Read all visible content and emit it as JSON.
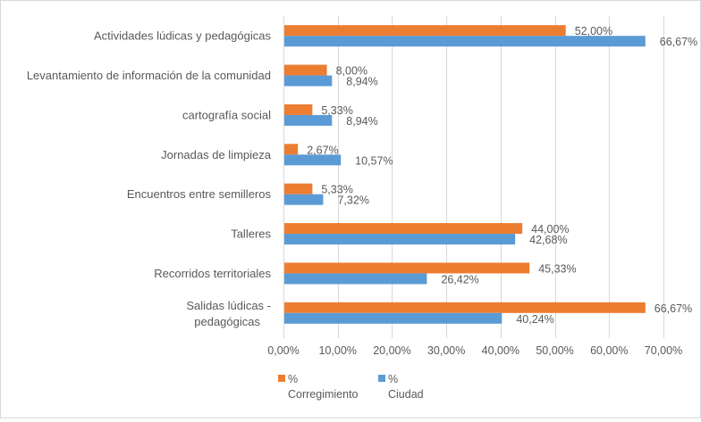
{
  "chart_data": {
    "type": "bar",
    "orientation": "horizontal",
    "title": "",
    "xlabel": "",
    "ylabel": "",
    "categories": [
      "Actividades lúdicas y pedagógicas",
      "Levantamiento de información de la comunidad",
      "cartografía social",
      "Jornadas de limpieza",
      "Encuentros entre semilleros",
      "Talleres",
      "Recorridos territoriales",
      "Salidas lúdicas  - pedagógicas"
    ],
    "category_lines": [
      [
        "Actividades lúdicas y pedagógicas"
      ],
      [
        "Levantamiento de información de la comunidad"
      ],
      [
        "cartografía social"
      ],
      [
        "Jornadas de limpieza"
      ],
      [
        "Encuentros entre semilleros"
      ],
      [
        "Talleres"
      ],
      [
        "Recorridos territoriales"
      ],
      [
        "Salidas lúdicas  -",
        "pedagógicas"
      ]
    ],
    "series": [
      {
        "name": "% Corregimiento",
        "legend_lines": [
          "%",
          "Corregimiento"
        ],
        "color": "#ED7D31",
        "values": [
          52.0,
          8.0,
          5.33,
          2.67,
          5.33,
          44.0,
          45.33,
          66.67
        ],
        "labels": [
          "52,00%",
          "8,00%",
          "5,33%",
          "2,67%",
          "5,33%",
          "44,00%",
          "45,33%",
          "66,67%"
        ]
      },
      {
        "name": "% Ciudad",
        "legend_lines": [
          "%",
          "Ciudad"
        ],
        "color": "#5B9BD5",
        "values": [
          66.67,
          8.94,
          8.94,
          10.57,
          7.32,
          42.68,
          26.42,
          40.24
        ],
        "labels": [
          "66,67%",
          "8,94%",
          "8,94%",
          "10,57%",
          "7,32%",
          "42,68%",
          "26,42%",
          "40,24%"
        ]
      }
    ],
    "xlim": [
      0,
      70
    ],
    "x_ticks": [
      0,
      10,
      20,
      30,
      40,
      50,
      60,
      70
    ],
    "x_tick_labels": [
      "0,00%",
      "10,00%",
      "20,00%",
      "30,00%",
      "40,00%",
      "50,00%",
      "60,00%",
      "70,00%"
    ],
    "grid": "vertical",
    "legend_position": "bottom-left"
  }
}
